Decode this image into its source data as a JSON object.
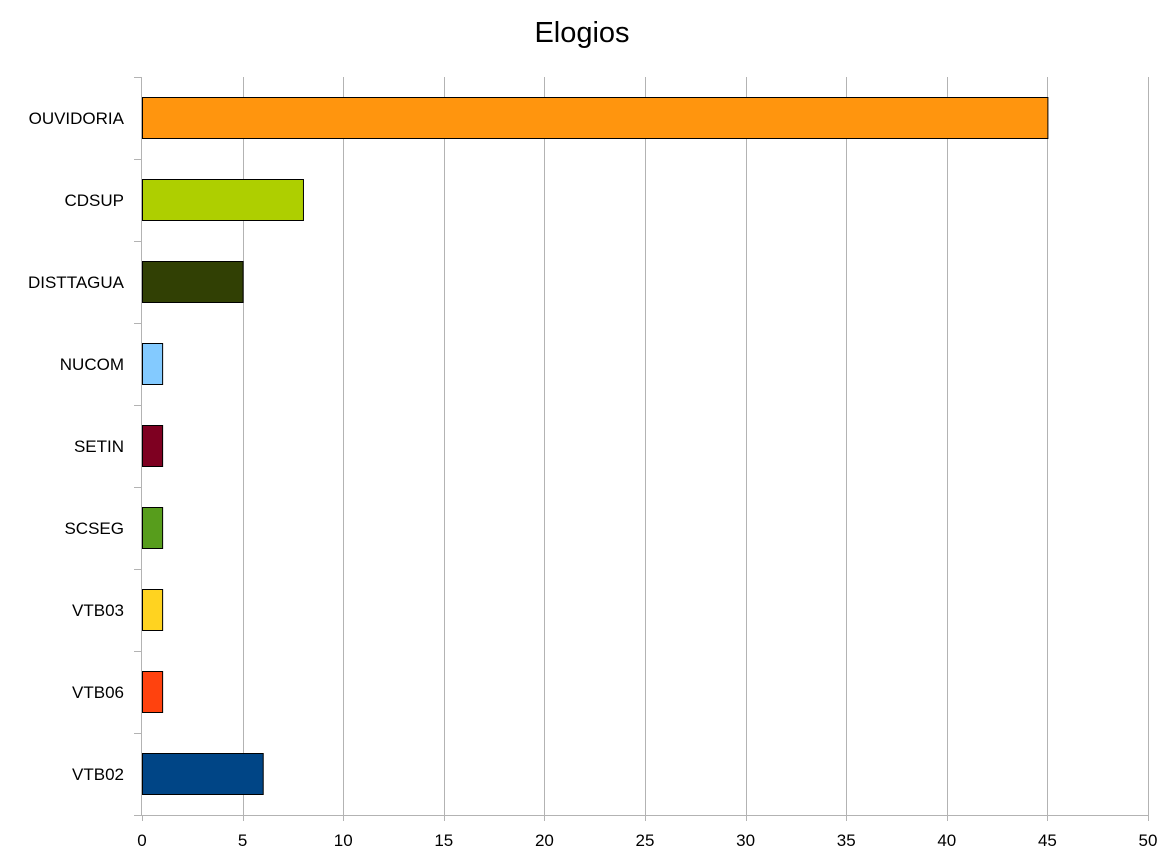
{
  "chart_data": {
    "type": "bar",
    "orientation": "horizontal",
    "title": "Elogios",
    "xlabel": "",
    "ylabel": "",
    "categories": [
      "OUVIDORIA",
      "CDSUP",
      "DISTTAGUA",
      "NUCOM",
      "SETIN",
      "SCSEG",
      "VTB03",
      "VTB06",
      "VTB02"
    ],
    "values": [
      45,
      8,
      5,
      1,
      1,
      1,
      1,
      1,
      6
    ],
    "colors": [
      "#ff950e",
      "#aecf00",
      "#314004",
      "#83caff",
      "#7e0021",
      "#579d1c",
      "#ffd320",
      "#ff420e",
      "#004586"
    ],
    "xlim": [
      0,
      50
    ],
    "xticks": [
      "0",
      "5",
      "10",
      "15",
      "20",
      "25",
      "30",
      "35",
      "40",
      "45",
      "50"
    ],
    "grid": "vertical",
    "legend": "none"
  }
}
